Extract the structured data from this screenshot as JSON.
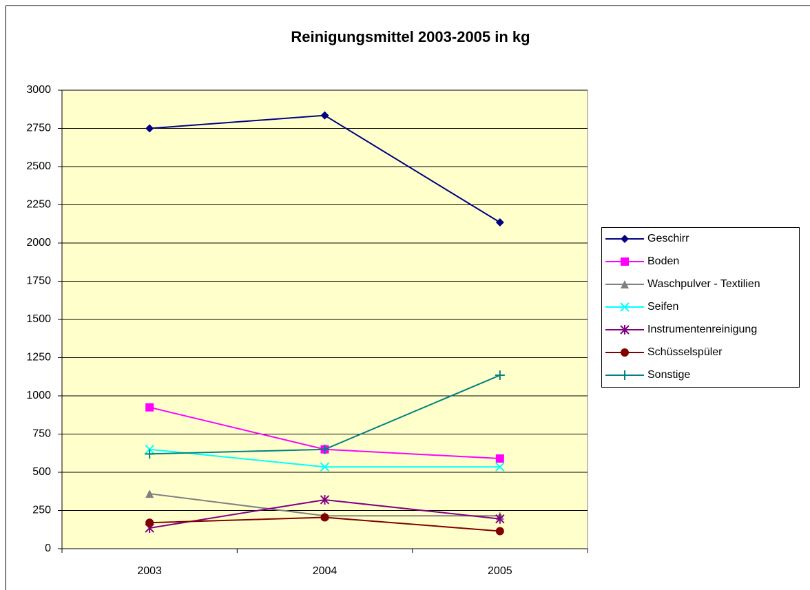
{
  "chart_data": {
    "type": "line",
    "title": "Reinigungsmittel 2003-2005 in kg",
    "categories": [
      "2003",
      "2004",
      "2005"
    ],
    "series": [
      {
        "name": "Geschirr",
        "color": "#000080",
        "marker": "diamond",
        "values": [
          2750,
          2835,
          2135
        ]
      },
      {
        "name": "Boden",
        "color": "#FF00FF",
        "marker": "square",
        "values": [
          925,
          650,
          590
        ]
      },
      {
        "name": "Waschpulver - Textilien",
        "color": "#808080",
        "marker": "triangle",
        "values": [
          360,
          215,
          215
        ]
      },
      {
        "name": "Seifen",
        "color": "#00FFFF",
        "marker": "x",
        "values": [
          650,
          535,
          535
        ]
      },
      {
        "name": "Instrumentenreinigung",
        "color": "#800080",
        "marker": "star",
        "values": [
          135,
          320,
          195
        ]
      },
      {
        "name": "Schüsselspüler",
        "color": "#800000",
        "marker": "circle",
        "values": [
          170,
          205,
          115
        ]
      },
      {
        "name": "Sonstige",
        "color": "#008080",
        "marker": "plus",
        "values": [
          620,
          650,
          1135
        ]
      }
    ],
    "ylim": [
      0,
      3000
    ],
    "yticks": [
      0,
      250,
      500,
      750,
      1000,
      1250,
      1500,
      1750,
      2000,
      2250,
      2500,
      2750,
      3000
    ],
    "grid": true,
    "legend": "right",
    "plot_background": "#FFFFCC"
  }
}
